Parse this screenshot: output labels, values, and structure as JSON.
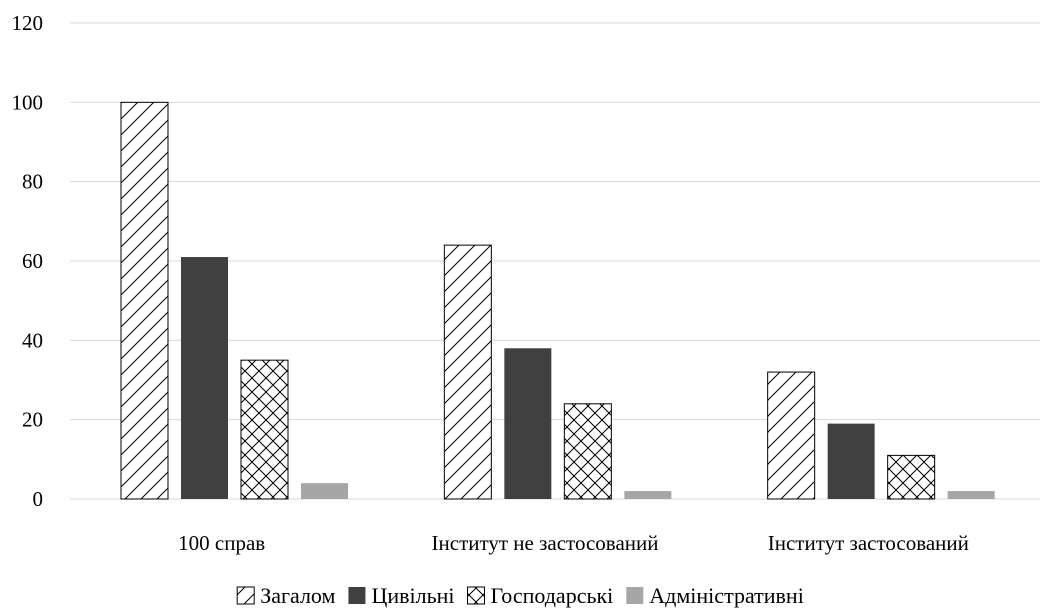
{
  "chart_data": {
    "type": "bar",
    "categories": [
      "100 справ",
      "Інститут не застосований",
      "Інститут застосований"
    ],
    "series": [
      {
        "name": "Загалом",
        "values": [
          100,
          64,
          32
        ],
        "fill": "hatch",
        "color": "#000000"
      },
      {
        "name": "Цивільні",
        "values": [
          61,
          38,
          19
        ],
        "fill": "solid",
        "color": "#404040"
      },
      {
        "name": "Господарські",
        "values": [
          35,
          24,
          11
        ],
        "fill": "crosshatch",
        "color": "#000000"
      },
      {
        "name": "Адміністративні",
        "values": [
          4,
          2,
          2
        ],
        "fill": "solid",
        "color": "#a6a6a6"
      }
    ],
    "yticks": [
      0,
      20,
      40,
      60,
      80,
      100,
      120
    ],
    "ylim": [
      0,
      120
    ],
    "grid": true,
    "gridline_color": "#d9d9d9",
    "legend_position": "bottom"
  }
}
